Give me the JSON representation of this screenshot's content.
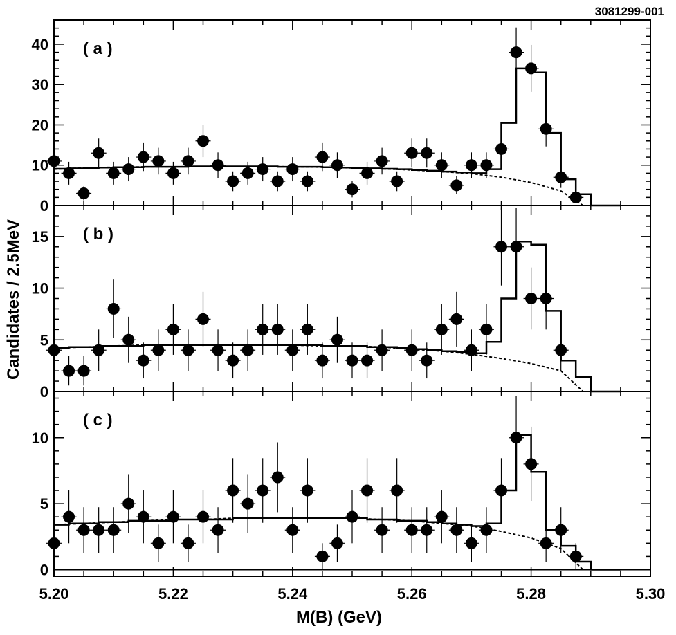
{
  "figure_id": "3081299-001",
  "colors": {
    "ink": "#000000",
    "background": "#ffffff"
  },
  "chart_data": [
    {
      "type": "scatter",
      "panel_label": "( a )",
      "xlabel": "M(B) (GeV)",
      "ylabel": "Candidates / 2.5MeV",
      "xlim": [
        5.2,
        5.3
      ],
      "ylim": [
        0,
        46
      ],
      "xticks": [
        "5.20",
        "5.22",
        "5.24",
        "5.26",
        "5.28",
        "5.30"
      ],
      "yticks": [
        "0",
        "10",
        "20",
        "30",
        "40"
      ],
      "x": [
        5.2,
        5.2025,
        5.205,
        5.2075,
        5.21,
        5.2125,
        5.215,
        5.2175,
        5.22,
        5.2225,
        5.225,
        5.2275,
        5.23,
        5.2325,
        5.235,
        5.2375,
        5.24,
        5.2425,
        5.245,
        5.2475,
        5.25,
        5.2525,
        5.255,
        5.2575,
        5.26,
        5.2625,
        5.265,
        5.2675,
        5.27,
        5.2725,
        5.275,
        5.2775,
        5.28,
        5.2825,
        5.285,
        5.2875
      ],
      "values": [
        11,
        8,
        3,
        13,
        8,
        9,
        12,
        11,
        8,
        11,
        16,
        10,
        6,
        8,
        9,
        6,
        9,
        6,
        12,
        10,
        4,
        8,
        11,
        6,
        13,
        13,
        10,
        5,
        10,
        10,
        14,
        38,
        34,
        19,
        7,
        2
      ],
      "fit_total_edges": [
        5.2,
        5.2025,
        5.205,
        5.2075,
        5.21,
        5.2125,
        5.215,
        5.2175,
        5.22,
        5.2225,
        5.225,
        5.2275,
        5.23,
        5.2325,
        5.235,
        5.2375,
        5.24,
        5.2425,
        5.245,
        5.2475,
        5.25,
        5.2525,
        5.255,
        5.2575,
        5.26,
        5.2625,
        5.265,
        5.2675,
        5.27,
        5.2725,
        5.275,
        5.2775,
        5.28,
        5.2825,
        5.285,
        5.2875,
        5.29,
        5.2925
      ],
      "fit_total_values": [
        9.1,
        9.2,
        9.3,
        9.4,
        9.5,
        9.5,
        9.6,
        9.6,
        9.6,
        9.7,
        9.7,
        9.7,
        9.7,
        9.7,
        9.7,
        9.6,
        9.6,
        9.6,
        9.5,
        9.4,
        9.3,
        9.2,
        9.1,
        9.0,
        8.8,
        8.6,
        8.4,
        8.2,
        8.0,
        9.0,
        20.5,
        34.0,
        33.0,
        18.0,
        6.5,
        2.8,
        0,
        0
      ],
      "background_x": [
        5.2,
        5.205,
        5.21,
        5.215,
        5.22,
        5.225,
        5.23,
        5.235,
        5.24,
        5.245,
        5.25,
        5.255,
        5.26,
        5.265,
        5.27,
        5.275,
        5.28,
        5.285,
        5.2887
      ],
      "background_y": [
        9.0,
        9.3,
        9.5,
        9.6,
        9.6,
        9.7,
        9.7,
        9.7,
        9.6,
        9.5,
        9.3,
        9.1,
        8.8,
        8.4,
        7.9,
        7.0,
        5.7,
        3.6,
        0
      ]
    },
    {
      "type": "scatter",
      "panel_label": "( b )",
      "xlim": [
        5.2,
        5.3
      ],
      "ylim": [
        0,
        18
      ],
      "yticks": [
        "0",
        "5",
        "10",
        "15"
      ],
      "x": [
        5.2,
        5.2025,
        5.205,
        5.2075,
        5.21,
        5.2125,
        5.215,
        5.2175,
        5.22,
        5.2225,
        5.225,
        5.2275,
        5.23,
        5.2325,
        5.235,
        5.2375,
        5.24,
        5.2425,
        5.245,
        5.2475,
        5.25,
        5.2525,
        5.255,
        5.26,
        5.2625,
        5.265,
        5.2675,
        5.27,
        5.2725,
        5.275,
        5.2775,
        5.28,
        5.2825,
        5.285
      ],
      "values": [
        4,
        2,
        2,
        4,
        8,
        5,
        3,
        4,
        6,
        4,
        7,
        4,
        3,
        4,
        6,
        6,
        4,
        6,
        3,
        5,
        3,
        3,
        4,
        4,
        3,
        6,
        7,
        4,
        6,
        14,
        14,
        9,
        9,
        4
      ],
      "fit_total_edges": [
        5.2,
        5.2025,
        5.205,
        5.2075,
        5.21,
        5.2125,
        5.215,
        5.2175,
        5.22,
        5.2225,
        5.225,
        5.2275,
        5.23,
        5.2325,
        5.235,
        5.2375,
        5.24,
        5.2425,
        5.245,
        5.2475,
        5.25,
        5.2525,
        5.255,
        5.2575,
        5.26,
        5.2625,
        5.265,
        5.2675,
        5.27,
        5.2725,
        5.275,
        5.2775,
        5.28,
        5.2825,
        5.285,
        5.2875,
        5.29,
        5.2925
      ],
      "fit_total_values": [
        4.2,
        4.3,
        4.3,
        4.4,
        4.4,
        4.4,
        4.5,
        4.5,
        4.5,
        4.5,
        4.5,
        4.5,
        4.5,
        4.5,
        4.5,
        4.5,
        4.5,
        4.5,
        4.4,
        4.4,
        4.4,
        4.3,
        4.3,
        4.2,
        4.1,
        4.0,
        3.9,
        3.8,
        3.7,
        4.8,
        9.0,
        14.5,
        14.2,
        7.8,
        3.0,
        1.4,
        0,
        0
      ],
      "background_x": [
        5.2,
        5.205,
        5.21,
        5.215,
        5.22,
        5.225,
        5.23,
        5.235,
        5.24,
        5.245,
        5.25,
        5.255,
        5.26,
        5.265,
        5.27,
        5.275,
        5.28,
        5.285,
        5.2887
      ],
      "background_y": [
        4.2,
        4.3,
        4.4,
        4.5,
        4.5,
        4.5,
        4.5,
        4.5,
        4.5,
        4.4,
        4.4,
        4.3,
        4.1,
        3.9,
        3.6,
        3.2,
        2.7,
        2.0,
        0
      ]
    },
    {
      "type": "scatter",
      "panel_label": "( c )",
      "xlim": [
        5.2,
        5.3
      ],
      "ylim": [
        -0.5,
        13.5
      ],
      "yticks": [
        "0",
        "5",
        "10"
      ],
      "x": [
        5.2,
        5.2025,
        5.205,
        5.2075,
        5.21,
        5.2125,
        5.215,
        5.2175,
        5.22,
        5.2225,
        5.225,
        5.2275,
        5.23,
        5.2325,
        5.235,
        5.2375,
        5.24,
        5.2425,
        5.245,
        5.2475,
        5.25,
        5.2525,
        5.255,
        5.2575,
        5.26,
        5.2625,
        5.265,
        5.2675,
        5.27,
        5.2725,
        5.275,
        5.2775,
        5.28,
        5.2825,
        5.285,
        5.2875
      ],
      "values": [
        2,
        4,
        3,
        3,
        3,
        5,
        4,
        2,
        4,
        2,
        4,
        3,
        6,
        5,
        6,
        7,
        3,
        6,
        1,
        2,
        4,
        6,
        3,
        6,
        3,
        3,
        4,
        3,
        2,
        3,
        6,
        10,
        8,
        2,
        3,
        1
      ],
      "fit_total_edges": [
        5.2,
        5.2025,
        5.205,
        5.2075,
        5.21,
        5.2125,
        5.215,
        5.2175,
        5.22,
        5.2225,
        5.225,
        5.2275,
        5.23,
        5.2325,
        5.235,
        5.2375,
        5.24,
        5.2425,
        5.245,
        5.2475,
        5.25,
        5.2525,
        5.255,
        5.2575,
        5.26,
        5.2625,
        5.265,
        5.2675,
        5.27,
        5.2725,
        5.275,
        5.2775,
        5.28,
        5.2825,
        5.285,
        5.2875,
        5.29,
        5.2925
      ],
      "fit_total_values": [
        3.4,
        3.5,
        3.5,
        3.6,
        3.6,
        3.7,
        3.7,
        3.7,
        3.8,
        3.8,
        3.8,
        3.8,
        3.9,
        3.9,
        3.9,
        3.9,
        3.9,
        3.9,
        3.9,
        3.9,
        3.9,
        3.8,
        3.8,
        3.7,
        3.7,
        3.6,
        3.5,
        3.4,
        3.3,
        3.5,
        6.0,
        10.2,
        7.4,
        3.0,
        1.8,
        0.6,
        0,
        0
      ],
      "background_x": [
        5.2,
        5.205,
        5.21,
        5.215,
        5.22,
        5.225,
        5.23,
        5.235,
        5.24,
        5.245,
        5.25,
        5.255,
        5.26,
        5.265,
        5.27,
        5.275,
        5.28,
        5.285,
        5.2887
      ],
      "background_y": [
        3.4,
        3.5,
        3.6,
        3.7,
        3.8,
        3.8,
        3.9,
        3.9,
        3.9,
        3.9,
        3.9,
        3.8,
        3.7,
        3.5,
        3.3,
        2.9,
        2.4,
        1.6,
        0
      ]
    }
  ]
}
